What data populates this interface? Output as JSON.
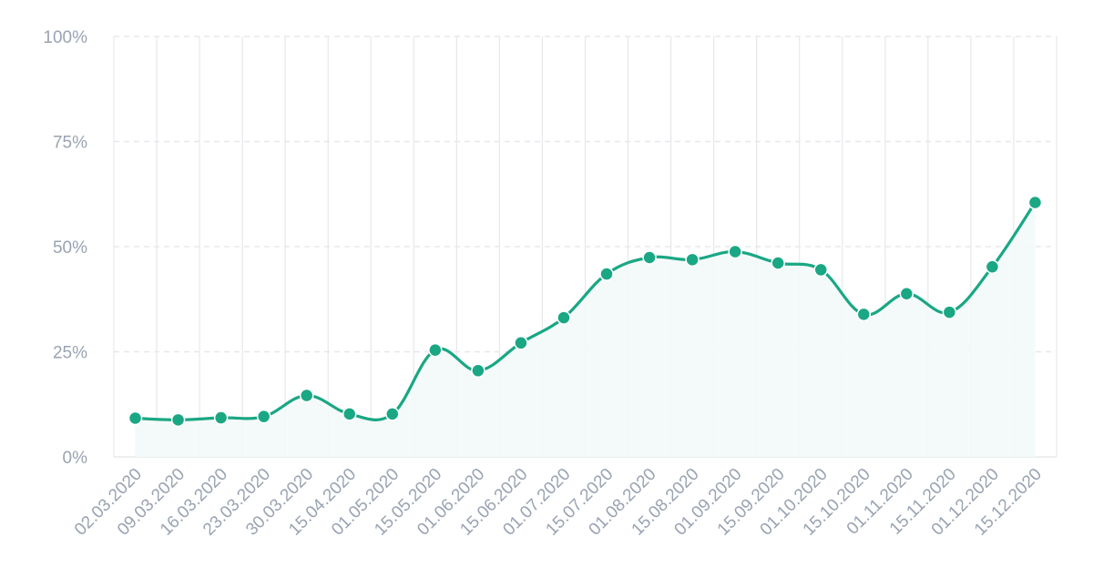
{
  "chart_data": {
    "type": "line",
    "categories": [
      "02.03.2020",
      "09.03.2020",
      "16.03.2020",
      "23.03.2020",
      "30.03.2020",
      "15.04.2020",
      "01.05.2020",
      "15.05.2020",
      "01.06.2020",
      "15.06.2020",
      "01.07.2020",
      "15.07.2020",
      "01.08.2020",
      "15.08.2020",
      "01.09.2020",
      "15.09.2020",
      "01.10.2020",
      "15.10.2020",
      "01.11.2020",
      "15.11.2020",
      "01.12.2020",
      "15.12.2020"
    ],
    "series": [
      {
        "values": [
          9.2,
          8.8,
          9.3,
          9.6,
          14.6,
          10.2,
          10.2,
          25.4,
          20.5,
          27.1,
          33.1,
          43.5,
          47.4,
          46.9,
          48.8,
          46.1,
          44.5,
          33.9,
          38.8,
          34.4,
          45.2,
          60.5
        ]
      }
    ],
    "y_ticks": [
      "0%",
      "25%",
      "50%",
      "75%",
      "100%"
    ],
    "ylim": [
      0,
      100
    ],
    "grid": true,
    "colors": {
      "line": "#1aa784",
      "area": "#f3f9f9",
      "grid": "#e6e8ec",
      "tick": "#9aa3b2"
    },
    "title": "",
    "xlabel": "",
    "ylabel": ""
  }
}
